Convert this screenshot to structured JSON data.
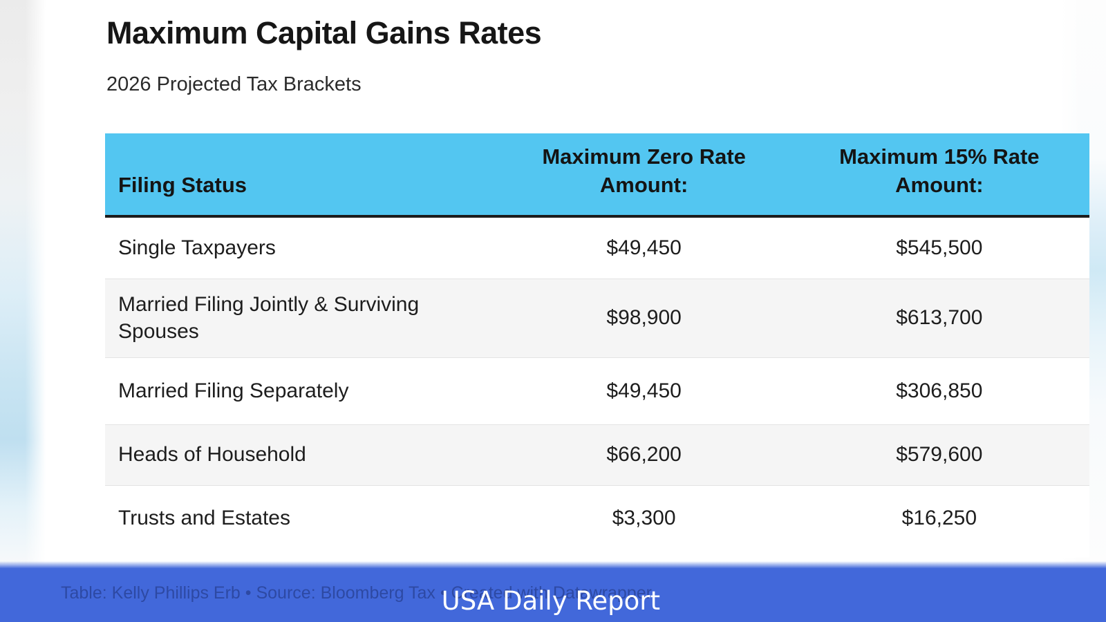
{
  "chart_data": {
    "type": "table",
    "title": "Maximum Capital Gains Rates",
    "subtitle": "2026 Projected Tax Brackets",
    "columns": [
      "Filing Status",
      "Maximum Zero Rate Amount:",
      "Maximum 15% Rate Amount:"
    ],
    "rows": [
      [
        "Single Taxpayers",
        "$49,450",
        "$545,500"
      ],
      [
        "Married Filing Jointly & Surviving Spouses",
        "$98,900",
        "$613,700"
      ],
      [
        "Married Filing Separately",
        "$49,450",
        "$306,850"
      ],
      [
        "Heads of Household",
        "$66,200",
        "$579,600"
      ],
      [
        "Trusts and Estates",
        "$3,300",
        "$16,250"
      ]
    ],
    "layout": {
      "header_row_shaded": true,
      "alternating_rows": true,
      "value_alignment": "center"
    }
  },
  "footer": {
    "attribution": "Table: Kelly Phillips Erb • Source: Bloomberg Tax • Created with Datawrapper",
    "banner_label": "USA Daily Report"
  },
  "colors": {
    "header-bg": "#53c6f1",
    "header-border": "#1c1c1c",
    "row-alt-bg": "#f5f5f5",
    "banner-bg": "#4268da"
  }
}
